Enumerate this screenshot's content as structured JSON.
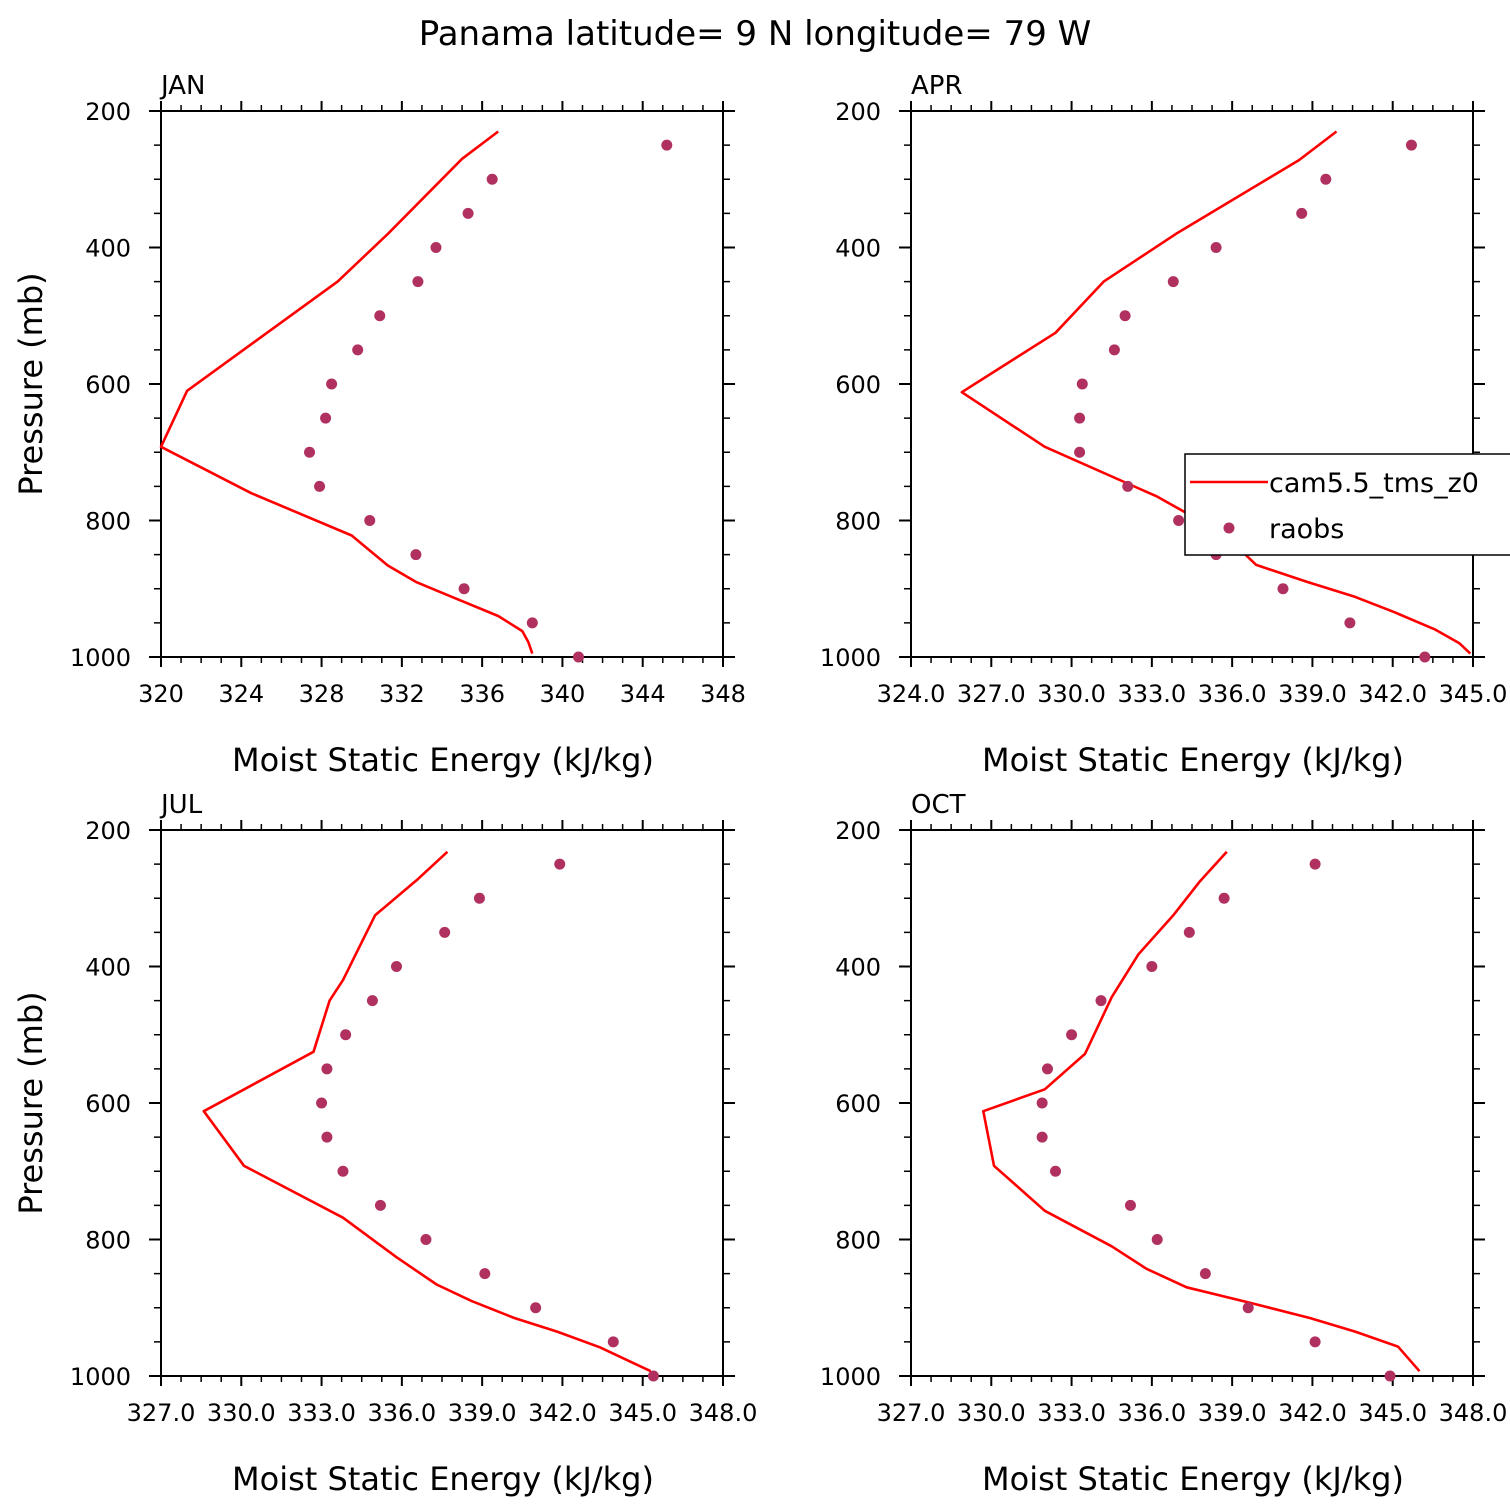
{
  "title": "Panama  latitude= 9 N longitude= 79 W",
  "colors": {
    "model_line": "#ff0000",
    "obs_marker": "#b03060"
  },
  "legend": {
    "model_label": "cam5.5_tms_z0",
    "obs_label": "raobs",
    "placement": "inside APR panel, right edge, clipped"
  },
  "chart_data": [
    {
      "type": "line",
      "panel": "JAN",
      "xlabel": "Moist Static Energy (kJ/kg)",
      "ylabel": "Pressure (mb)",
      "xlim": [
        320,
        348
      ],
      "x_ticks": [
        320,
        324,
        328,
        332,
        336,
        340,
        344,
        348
      ],
      "x_tick_labels": [
        "320",
        "324",
        "328",
        "332",
        "336",
        "340",
        "344",
        "348"
      ],
      "ylim": [
        1000,
        200
      ],
      "y_ticks": [
        200,
        400,
        600,
        800,
        1000
      ],
      "y_tick_labels": [
        "200",
        "400",
        "600",
        "800",
        "1000"
      ],
      "grid": false,
      "series": [
        {
          "name": "cam5.5_tms_z0",
          "style": "line",
          "points": [
            [
              336.8,
              230
            ],
            [
              335.0,
              270
            ],
            [
              331.3,
              380
            ],
            [
              328.8,
              450
            ],
            [
              321.3,
              610
            ],
            [
              320.0,
              692
            ],
            [
              324.5,
              760
            ],
            [
              329.5,
              822
            ],
            [
              331.3,
              866
            ],
            [
              332.7,
              890
            ],
            [
              334.5,
              912
            ],
            [
              336.8,
              940
            ],
            [
              338.0,
              962
            ],
            [
              338.3,
              978
            ],
            [
              338.5,
              995
            ]
          ]
        },
        {
          "name": "raobs",
          "style": "marker",
          "points": [
            [
              345.2,
              250
            ],
            [
              336.5,
              300
            ],
            [
              335.3,
              350
            ],
            [
              333.7,
              400
            ],
            [
              332.8,
              450
            ],
            [
              330.9,
              500
            ],
            [
              329.8,
              550
            ],
            [
              328.5,
              600
            ],
            [
              328.2,
              650
            ],
            [
              327.4,
              700
            ],
            [
              327.9,
              750
            ],
            [
              330.4,
              800
            ],
            [
              332.7,
              850
            ],
            [
              335.1,
              900
            ],
            [
              338.5,
              950
            ],
            [
              340.8,
              1000
            ]
          ]
        }
      ]
    },
    {
      "type": "line",
      "panel": "APR",
      "xlabel": "Moist Static Energy (kJ/kg)",
      "ylabel": "",
      "xlim": [
        324.0,
        345.0
      ],
      "x_ticks": [
        324,
        327,
        330,
        333,
        336,
        339,
        342,
        345
      ],
      "x_tick_labels": [
        "324.0",
        "327.0",
        "330.0",
        "333.0",
        "336.0",
        "339.0",
        "342.0",
        "345.0"
      ],
      "ylim": [
        1000,
        200
      ],
      "y_ticks": [
        200,
        400,
        600,
        800,
        1000
      ],
      "y_tick_labels": [
        "200",
        "400",
        "600",
        "800",
        "1000"
      ],
      "grid": false,
      "series": [
        {
          "name": "cam5.5_tms_z0",
          "style": "line",
          "points": [
            [
              339.9,
              230
            ],
            [
              338.5,
              272
            ],
            [
              333.9,
              380
            ],
            [
              331.2,
              450
            ],
            [
              329.4,
              525
            ],
            [
              325.9,
              612
            ],
            [
              329.0,
              692
            ],
            [
              333.2,
              765
            ],
            [
              335.7,
              820
            ],
            [
              336.9,
              865
            ],
            [
              338.8,
              890
            ],
            [
              340.6,
              912
            ],
            [
              342.1,
              935
            ],
            [
              343.6,
              960
            ],
            [
              344.5,
              980
            ],
            [
              344.9,
              995
            ]
          ]
        },
        {
          "name": "raobs",
          "style": "marker",
          "points": [
            [
              342.7,
              250
            ],
            [
              339.5,
              300
            ],
            [
              338.6,
              350
            ],
            [
              335.4,
              400
            ],
            [
              333.8,
              450
            ],
            [
              332.0,
              500
            ],
            [
              331.6,
              550
            ],
            [
              330.4,
              600
            ],
            [
              330.3,
              650
            ],
            [
              330.3,
              700
            ],
            [
              332.1,
              750
            ],
            [
              334.0,
              800
            ],
            [
              335.4,
              850
            ],
            [
              337.9,
              900
            ],
            [
              340.4,
              950
            ],
            [
              343.2,
              1000
            ]
          ]
        }
      ]
    },
    {
      "type": "line",
      "panel": "JUL",
      "xlabel": "Moist Static Energy (kJ/kg)",
      "ylabel": "Pressure (mb)",
      "xlim": [
        327.0,
        348.0
      ],
      "x_ticks": [
        327,
        330,
        333,
        336,
        339,
        342,
        345,
        348
      ],
      "x_tick_labels": [
        "327.0",
        "330.0",
        "333.0",
        "336.0",
        "339.0",
        "342.0",
        "345.0",
        "348.0"
      ],
      "ylim": [
        1000,
        200
      ],
      "y_ticks": [
        200,
        400,
        600,
        800,
        1000
      ],
      "y_tick_labels": [
        "200",
        "400",
        "600",
        "800",
        "1000"
      ],
      "grid": false,
      "series": [
        {
          "name": "cam5.5_tms_z0",
          "style": "line",
          "points": [
            [
              337.7,
              232
            ],
            [
              336.6,
              272
            ],
            [
              335.0,
              325
            ],
            [
              334.3,
              380
            ],
            [
              333.8,
              420
            ],
            [
              333.3,
              450
            ],
            [
              332.7,
              525
            ],
            [
              328.6,
              612
            ],
            [
              330.1,
              692
            ],
            [
              333.8,
              768
            ],
            [
              335.8,
              826
            ],
            [
              337.3,
              866
            ],
            [
              338.6,
              890
            ],
            [
              340.2,
              915
            ],
            [
              341.8,
              935
            ],
            [
              343.4,
              958
            ],
            [
              345.3,
              993
            ]
          ]
        },
        {
          "name": "raobs",
          "style": "marker",
          "points": [
            [
              341.9,
              250
            ],
            [
              338.9,
              300
            ],
            [
              337.6,
              350
            ],
            [
              335.8,
              400
            ],
            [
              334.9,
              450
            ],
            [
              333.9,
              500
            ],
            [
              333.2,
              550
            ],
            [
              333.0,
              600
            ],
            [
              333.2,
              650
            ],
            [
              333.8,
              700
            ],
            [
              335.2,
              750
            ],
            [
              336.9,
              800
            ],
            [
              339.1,
              850
            ],
            [
              341.0,
              900
            ],
            [
              343.9,
              950
            ],
            [
              345.4,
              1000
            ]
          ]
        }
      ]
    },
    {
      "type": "line",
      "panel": "OCT",
      "xlabel": "Moist Static Energy (kJ/kg)",
      "ylabel": "",
      "xlim": [
        327.0,
        348.0
      ],
      "x_ticks": [
        327,
        330,
        333,
        336,
        339,
        342,
        345,
        348
      ],
      "x_tick_labels": [
        "327.0",
        "330.0",
        "333.0",
        "336.0",
        "339.0",
        "342.0",
        "345.0",
        "348.0"
      ],
      "ylim": [
        1000,
        200
      ],
      "y_ticks": [
        200,
        400,
        600,
        800,
        1000
      ],
      "y_tick_labels": [
        "200",
        "400",
        "600",
        "800",
        "1000"
      ],
      "grid": false,
      "series": [
        {
          "name": "cam5.5_tms_z0",
          "style": "line",
          "points": [
            [
              338.8,
              232
            ],
            [
              337.8,
              275
            ],
            [
              336.8,
              325
            ],
            [
              335.5,
              382
            ],
            [
              334.5,
              445
            ],
            [
              333.5,
              528
            ],
            [
              332.0,
              580
            ],
            [
              329.7,
              612
            ],
            [
              330.1,
              692
            ],
            [
              332.0,
              758
            ],
            [
              334.5,
              810
            ],
            [
              335.8,
              843
            ],
            [
              337.3,
              870
            ],
            [
              339.7,
              893
            ],
            [
              341.9,
              915
            ],
            [
              343.6,
              935
            ],
            [
              345.2,
              957
            ],
            [
              346.0,
              993
            ]
          ]
        },
        {
          "name": "raobs",
          "style": "marker",
          "points": [
            [
              342.1,
              250
            ],
            [
              338.7,
              300
            ],
            [
              337.4,
              350
            ],
            [
              336.0,
              400
            ],
            [
              334.1,
              450
            ],
            [
              333.0,
              500
            ],
            [
              332.1,
              550
            ],
            [
              331.9,
              600
            ],
            [
              331.9,
              650
            ],
            [
              332.4,
              700
            ],
            [
              335.2,
              750
            ],
            [
              336.2,
              800
            ],
            [
              338.0,
              850
            ],
            [
              339.6,
              900
            ],
            [
              342.1,
              950
            ],
            [
              344.9,
              1000
            ]
          ]
        }
      ]
    }
  ]
}
